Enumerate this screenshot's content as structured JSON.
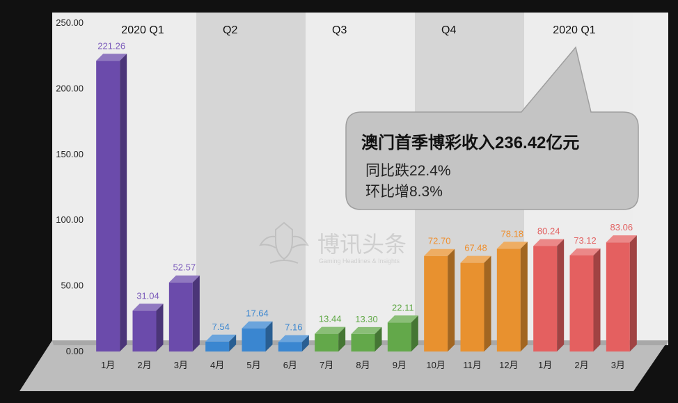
{
  "chart_data": {
    "type": "bar",
    "title": "",
    "xlabel": "",
    "ylabel": "",
    "ylim": [
      0,
      250
    ],
    "yticks": [
      "0.00",
      "50.00",
      "100.00",
      "150.00",
      "200.00",
      "250.00"
    ],
    "categories": [
      "1月",
      "2月",
      "3月",
      "4月",
      "5月",
      "6月",
      "7月",
      "8月",
      "9月",
      "10月",
      "11月",
      "12月",
      "1月",
      "2月",
      "3月"
    ],
    "values": [
      221.26,
      31.04,
      52.57,
      7.54,
      17.64,
      7.16,
      13.44,
      13.3,
      22.11,
      72.7,
      67.48,
      78.18,
      80.24,
      73.12,
      83.06
    ],
    "value_labels": [
      "221.26",
      "31.04",
      "52.57",
      "7.54",
      "17.64",
      "7.16",
      "13.44",
      "13.30",
      "22.11",
      "72.70",
      "67.48",
      "78.18",
      "80.24",
      "73.12",
      "83.06"
    ],
    "groups": [
      {
        "label": "2020 Q1",
        "start": 0,
        "end": 2,
        "color": "#6b4bab",
        "label_color": "#7b5bbb"
      },
      {
        "label": "Q2",
        "start": 3,
        "end": 5,
        "color": "#3a86d0",
        "label_color": "#3a86d0"
      },
      {
        "label": "Q3",
        "start": 6,
        "end": 8,
        "color": "#63a84a",
        "label_color": "#5fa845"
      },
      {
        "label": "Q4",
        "start": 9,
        "end": 11,
        "color": "#e8912f",
        "label_color": "#ef8f2e"
      },
      {
        "label": "2020 Q1",
        "start": 12,
        "end": 14,
        "color": "#e46060",
        "label_color": "#e26262"
      }
    ],
    "grid": false,
    "legend": "none"
  },
  "callout": {
    "title": "澳门首季博彩收入236.42亿元",
    "line1": "同比跌22.4%",
    "line2": "环比增8.3%"
  },
  "watermark": {
    "name": "博讯头条",
    "tagline": "Gaming Headlines & Insights"
  }
}
